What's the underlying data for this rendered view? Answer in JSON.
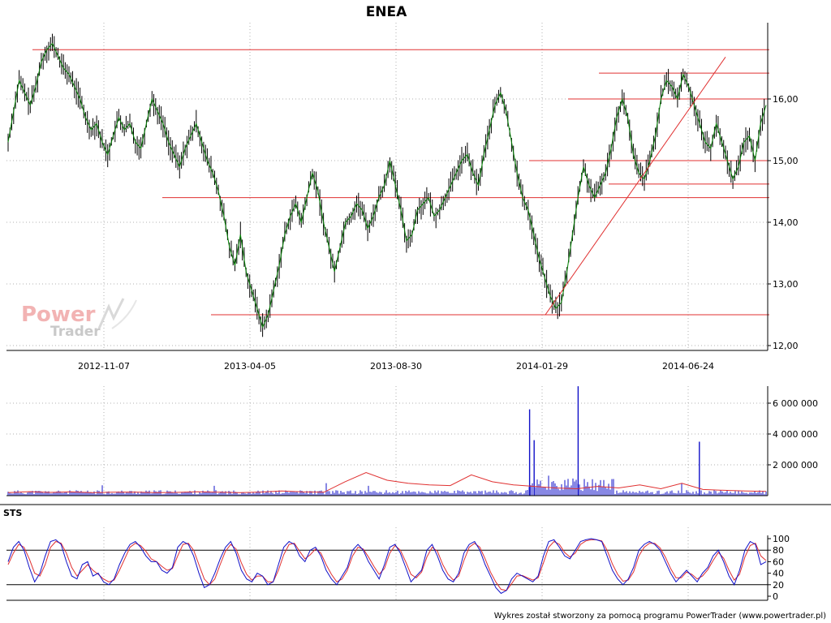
{
  "chart_data": [
    {
      "type": "line",
      "title": "ENEA",
      "y_ticks": [
        "12,00",
        "13,00",
        "14,00",
        "15,00",
        "16,00"
      ],
      "y_tick_values": [
        12,
        13,
        14,
        15,
        16
      ],
      "x_ticks": [
        "2012-11-07",
        "2013-04-05",
        "2013-08-30",
        "2014-01-29",
        "2014-06-24"
      ],
      "ylim": [
        12.0,
        17.3
      ],
      "grid": true,
      "colors": {
        "price": "#000000",
        "trend": "#008000",
        "support": "#e03030"
      },
      "series": [
        {
          "role": "close",
          "values": [
            15.3,
            15.8,
            16.3,
            16.1,
            15.9,
            16.2,
            16.6,
            16.8,
            16.9,
            16.7,
            16.5,
            16.4,
            16.2,
            16.0,
            15.7,
            15.5,
            15.6,
            15.3,
            15.1,
            15.4,
            15.7,
            15.5,
            15.6,
            15.3,
            15.2,
            15.6,
            16.0,
            15.8,
            15.6,
            15.3,
            15.1,
            14.9,
            15.2,
            15.4,
            15.6,
            15.3,
            15.0,
            14.8,
            14.5,
            14.1,
            13.6,
            13.3,
            13.8,
            13.2,
            12.9,
            12.6,
            12.3,
            12.5,
            12.9,
            13.3,
            13.8,
            14.1,
            14.3,
            14.0,
            14.4,
            14.8,
            14.5,
            14.0,
            13.6,
            13.2,
            13.6,
            14.0,
            14.1,
            14.3,
            14.2,
            13.9,
            14.1,
            14.4,
            14.6,
            15.0,
            14.6,
            14.2,
            13.7,
            13.8,
            14.2,
            14.3,
            14.4,
            14.1,
            14.2,
            14.4,
            14.6,
            14.8,
            15.0,
            15.1,
            14.8,
            14.6,
            15.1,
            15.5,
            15.9,
            16.1,
            15.8,
            15.3,
            14.8,
            14.4,
            14.2,
            13.8,
            13.4,
            13.1,
            12.8,
            12.6,
            12.7,
            13.2,
            13.8,
            14.4,
            14.9,
            14.6,
            14.4,
            14.6,
            14.8,
            15.2,
            15.7,
            16.0,
            15.7,
            15.1,
            14.8,
            14.7,
            15.0,
            15.4,
            16.0,
            16.3,
            16.2,
            16.0,
            16.4,
            16.2,
            15.9,
            15.6,
            15.3,
            15.2,
            15.6,
            15.3,
            15.0,
            14.7,
            14.9,
            15.3,
            15.4,
            15.0,
            15.6,
            15.9
          ]
        }
      ],
      "support_lines": [
        16.8,
        16.42,
        16.0,
        15.0,
        14.62,
        14.4,
        12.5
      ],
      "trendline": {
        "from": 12.5,
        "to": 16.68
      }
    },
    {
      "type": "bar",
      "y_ticks": [
        "2 000 000",
        "4 000 000",
        "6 000 000"
      ],
      "y_tick_values": [
        2000000,
        4000000,
        6000000
      ],
      "ylim": [
        0,
        7300000
      ],
      "colors": {
        "volume": "#1010c8",
        "average": "#e03030"
      },
      "spikes": [
        {
          "pos": 0.688,
          "value": 5600000
        },
        {
          "pos": 0.694,
          "value": 3600000
        },
        {
          "pos": 0.752,
          "value": 7100000
        },
        {
          "pos": 0.912,
          "value": 3500000
        }
      ],
      "avg_values": [
        200000,
        260000,
        210000,
        240000,
        200000,
        220000,
        230000,
        200000,
        210000,
        250000,
        220000,
        200000,
        230000,
        300000,
        240000,
        220000,
        900000,
        1500000,
        1000000,
        800000,
        700000,
        650000,
        1350000,
        900000,
        700000,
        600000,
        500000,
        450000,
        600000,
        500000,
        700000,
        450000,
        800000,
        400000,
        350000,
        300000,
        280000
      ]
    },
    {
      "type": "line",
      "label": "STS",
      "y_ticks": [
        "0",
        "20",
        "40",
        "60",
        "80",
        "100"
      ],
      "y_tick_values": [
        0,
        20,
        40,
        60,
        80,
        100
      ],
      "ylim": [
        0,
        100
      ],
      "ref_lines": [
        20,
        80
      ],
      "colors": {
        "k": "#1010c8",
        "d": "#e03030"
      },
      "series": [
        {
          "name": "",
          "values": [
            60,
            85,
            95,
            80,
            50,
            25,
            40,
            70,
            95,
            98,
            90,
            60,
            35,
            30,
            55,
            60,
            35,
            40,
            25,
            20,
            30,
            55,
            75,
            90,
            95,
            85,
            70,
            60,
            60,
            45,
            40,
            50,
            85,
            95,
            90,
            70,
            40,
            15,
            20,
            40,
            65,
            85,
            95,
            75,
            45,
            30,
            25,
            40,
            35,
            20,
            25,
            55,
            85,
            95,
            90,
            70,
            60,
            80,
            85,
            70,
            45,
            30,
            20,
            35,
            50,
            80,
            90,
            80,
            60,
            45,
            30,
            55,
            85,
            90,
            75,
            50,
            25,
            35,
            45,
            80,
            90,
            70,
            45,
            30,
            25,
            40,
            75,
            90,
            95,
            80,
            55,
            35,
            15,
            5,
            10,
            30,
            40,
            35,
            30,
            25,
            35,
            70,
            95,
            98,
            85,
            70,
            65,
            80,
            95,
            98,
            100,
            98,
            95,
            70,
            45,
            30,
            20,
            30,
            50,
            80,
            90,
            95,
            90,
            80,
            60,
            40,
            25,
            35,
            45,
            35,
            25,
            40,
            50,
            70,
            80,
            60,
            35,
            20,
            45,
            80,
            95,
            90,
            55,
            60
          ]
        },
        {
          "name": "",
          "values": [
            55,
            75,
            90,
            85,
            65,
            40,
            35,
            55,
            85,
            95,
            92,
            75,
            50,
            35,
            45,
            55,
            45,
            38,
            30,
            25,
            28,
            45,
            65,
            85,
            92,
            88,
            78,
            65,
            60,
            52,
            45,
            48,
            70,
            90,
            92,
            80,
            55,
            30,
            20,
            30,
            55,
            78,
            90,
            82,
            58,
            38,
            28,
            35,
            35,
            25,
            25,
            45,
            72,
            90,
            92,
            78,
            65,
            72,
            82,
            75,
            55,
            38,
            25,
            30,
            45,
            70,
            85,
            82,
            68,
            52,
            38,
            48,
            75,
            88,
            80,
            60,
            38,
            32,
            42,
            68,
            85,
            78,
            55,
            38,
            28,
            35,
            62,
            85,
            92,
            85,
            65,
            42,
            25,
            12,
            10,
            22,
            35,
            36,
            32,
            28,
            32,
            58,
            85,
            95,
            90,
            76,
            68,
            75,
            90,
            96,
            98,
            98,
            96,
            80,
            56,
            38,
            26,
            28,
            42,
            70,
            85,
            92,
            92,
            84,
            68,
            48,
            32,
            32,
            42,
            38,
            30,
            35,
            46,
            62,
            76,
            66,
            45,
            28,
            38,
            68,
            88,
            92,
            70,
            62
          ]
        }
      ]
    }
  ],
  "watermark": {
    "power": "Power",
    "trader": "Trader"
  },
  "footer": "Wykres został stworzony za pomocą programu PowerTrader (www.powertrader.pl)"
}
